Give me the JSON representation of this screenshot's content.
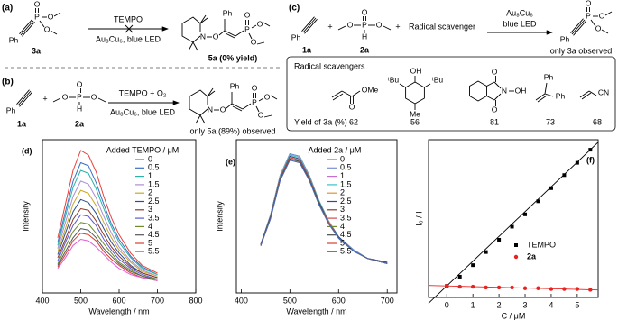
{
  "schemes": {
    "a": {
      "label": "(a)",
      "reactant": "3a",
      "reactant_atoms": [
        "Ph",
        "O",
        "P",
        "O",
        "O"
      ],
      "reagent": "TEMPO",
      "conditions": "Au₈Cu₆, blue LED",
      "product_atoms": [
        "N",
        "O",
        "Ph",
        "P",
        "O",
        "O",
        "O"
      ],
      "product": "5a (0% yield)"
    },
    "b": {
      "label": "(b)",
      "reactant1": "1a",
      "reactant1_atoms": [
        "Ph"
      ],
      "plus": "+",
      "reactant2": "2a",
      "reactant2_atoms": [
        "O",
        "P",
        "O",
        "O",
        "H"
      ],
      "reagent": "TEMPO + O₂",
      "conditions": "Au₈Cu₆, blue LED",
      "product_atoms": [
        "N",
        "O",
        "Ph",
        "P",
        "O",
        "O",
        "O"
      ],
      "product": "only 5a (89%) observed"
    },
    "c": {
      "label": "(c)",
      "reactant1": "1a",
      "reactant1_atoms": [
        "Ph"
      ],
      "plus1": "+",
      "reactant2": "2a",
      "reactant2_atoms": [
        "O",
        "P",
        "O",
        "O",
        "H"
      ],
      "plus2": "+",
      "scavenger": "Radical scavenger",
      "catalyst": "Au₈Cu₆",
      "light": "blue LED",
      "product_atoms": [
        "Ph",
        "O",
        "P",
        "O",
        "O"
      ],
      "product": "only 3a observed",
      "box_title": "Radical scavengers",
      "scavenger_atoms": [
        "O",
        "OMe",
        "OH",
        "ᵗBu",
        "ᵗBu",
        "Me",
        "O",
        "O",
        "N",
        "OH",
        "Ph",
        "Ph",
        "CN"
      ],
      "yield_label": "Yield of 3a (%)",
      "yields": [
        62,
        56,
        81,
        73,
        68
      ]
    }
  },
  "chart_data": [
    {
      "type": "line",
      "panel_label": "(d)",
      "xlabel": "Wavelength / nm",
      "ylabel": "Intensity",
      "legend_title": "Added TEMPO / μM",
      "x": [
        440,
        460,
        480,
        500,
        520,
        540,
        560,
        580,
        600,
        630,
        660,
        700
      ],
      "xlim": [
        400,
        800
      ],
      "xticks": [
        400,
        500,
        600,
        700,
        800
      ],
      "ylim": [
        0,
        100
      ],
      "series": [
        {
          "name": "0",
          "color": "#e8413a",
          "values": [
            36,
            58,
            80,
            93,
            90,
            79,
            63,
            49,
            38,
            26,
            18,
            13
          ]
        },
        {
          "name": "0.5",
          "color": "#3b6fc2",
          "values": [
            33,
            53,
            73,
            85,
            83,
            72,
            58,
            45,
            35,
            24,
            17,
            12
          ]
        },
        {
          "name": "1",
          "color": "#2ab3a6",
          "values": [
            31,
            50,
            69,
            80,
            78,
            68,
            55,
            43,
            33,
            23,
            16,
            12
          ]
        },
        {
          "name": "1.5",
          "color": "#a88fd6",
          "values": [
            29,
            46,
            63,
            73,
            71,
            62,
            50,
            39,
            30,
            21,
            15,
            11
          ]
        },
        {
          "name": "2",
          "color": "#c8a822",
          "values": [
            27,
            42,
            58,
            67,
            65,
            57,
            46,
            36,
            28,
            20,
            14,
            11
          ]
        },
        {
          "name": "2.5",
          "color": "#2a4d8f",
          "values": [
            25,
            39,
            53,
            61,
            59,
            52,
            42,
            33,
            26,
            18,
            13,
            10
          ]
        },
        {
          "name": "3",
          "color": "#8e3a2a",
          "values": [
            23,
            35,
            48,
            55,
            54,
            47,
            38,
            30,
            24,
            17,
            13,
            10
          ]
        },
        {
          "name": "3.5",
          "color": "#5a5ad6",
          "values": [
            21,
            33,
            44,
            51,
            50,
            44,
            35,
            28,
            22,
            16,
            12,
            9
          ]
        },
        {
          "name": "4",
          "color": "#6c8c2a",
          "values": [
            19,
            30,
            40,
            46,
            45,
            39,
            32,
            26,
            20,
            15,
            11,
            9
          ]
        },
        {
          "name": "4.5",
          "color": "#555555",
          "values": [
            18,
            27,
            36,
            42,
            41,
            36,
            29,
            24,
            19,
            14,
            11,
            8
          ]
        },
        {
          "name": "5",
          "color": "#d43f2f",
          "values": [
            17,
            25,
            34,
            39,
            38,
            34,
            27,
            22,
            18,
            13,
            10,
            8
          ]
        },
        {
          "name": "5.5",
          "color": "#e05fd8",
          "values": [
            16,
            23,
            31,
            35,
            34,
            30,
            25,
            20,
            16,
            12,
            10,
            8
          ]
        }
      ]
    },
    {
      "type": "line",
      "panel_label": "(e)",
      "xlabel": "Wavelength / nm",
      "ylabel": "Intensity",
      "legend_title": "Added 2a / μM",
      "x": [
        440,
        460,
        480,
        500,
        520,
        540,
        560,
        580,
        600,
        630,
        660,
        700
      ],
      "xlim": [
        390,
        720
      ],
      "xticks": [
        400,
        500,
        600,
        700
      ],
      "ylim": [
        -20,
        100
      ],
      "series": [
        {
          "name": "0",
          "color": "#3aa64a",
          "values": [
            18,
            41,
            72,
            89,
            87,
            72,
            52,
            36,
            24,
            14,
            7,
            4
          ]
        },
        {
          "name": "0.5",
          "color": "#7a8fd4",
          "values": [
            18,
            41,
            72,
            89,
            87,
            72,
            52,
            36,
            24,
            14,
            7,
            4
          ]
        },
        {
          "name": "1",
          "color": "#c76fd1",
          "values": [
            18,
            40,
            71,
            88,
            86,
            71,
            52,
            36,
            24,
            13,
            7,
            4
          ]
        },
        {
          "name": "1.5",
          "color": "#3dc2c2",
          "values": [
            18,
            40,
            71,
            88,
            86,
            71,
            52,
            36,
            24,
            13,
            7,
            4
          ]
        },
        {
          "name": "2",
          "color": "#e0952a",
          "values": [
            18,
            40,
            70,
            87,
            85,
            70,
            51,
            35,
            24,
            13,
            7,
            4
          ]
        },
        {
          "name": "2.5",
          "color": "#2a4d8f",
          "values": [
            18,
            40,
            70,
            87,
            85,
            70,
            51,
            35,
            24,
            13,
            7,
            4
          ]
        },
        {
          "name": "3",
          "color": "#8e3a2a",
          "values": [
            17,
            39,
            70,
            86,
            84,
            70,
            50,
            35,
            23,
            13,
            7,
            3
          ]
        },
        {
          "name": "3.5",
          "color": "#d64a4a",
          "values": [
            17,
            39,
            70,
            86,
            84,
            70,
            50,
            35,
            23,
            13,
            7,
            3
          ]
        },
        {
          "name": "4",
          "color": "#6c8c2a",
          "values": [
            17,
            39,
            69,
            85,
            83,
            69,
            50,
            34,
            23,
            13,
            7,
            3
          ]
        },
        {
          "name": "4.5",
          "color": "#4a4a4a",
          "values": [
            17,
            39,
            69,
            85,
            83,
            69,
            50,
            34,
            23,
            13,
            7,
            3
          ]
        },
        {
          "name": "5",
          "color": "#d43f2f",
          "values": [
            17,
            38,
            68,
            84,
            82,
            68,
            49,
            34,
            23,
            13,
            7,
            3
          ]
        },
        {
          "name": "5.5",
          "color": "#3b6fc2",
          "values": [
            17,
            38,
            68,
            84,
            82,
            68,
            49,
            34,
            23,
            13,
            7,
            3
          ]
        }
      ]
    },
    {
      "type": "scatter",
      "panel_label": "(f)",
      "xlabel": "C / μM",
      "ylabel": "I₀ / I",
      "x": [
        0,
        0.5,
        1,
        1.5,
        2,
        2.5,
        3,
        3.5,
        4,
        4.5,
        5,
        5.5
      ],
      "xlim": [
        -0.7,
        5.8
      ],
      "xticks": [
        0,
        1,
        2,
        3,
        4,
        5
      ],
      "ylim": [
        0.85,
        2.9
      ],
      "fit_line": true,
      "series": [
        {
          "name": "TEMPO",
          "color": "#000000",
          "marker": "square",
          "values": [
            1.0,
            1.12,
            1.27,
            1.44,
            1.6,
            1.77,
            1.93,
            2.1,
            2.27,
            2.44,
            2.6,
            2.77
          ]
        },
        {
          "name": "2a",
          "color": "#e8231f",
          "marker": "circle",
          "values": [
            1.0,
            0.99,
            0.99,
            0.98,
            0.98,
            0.98,
            0.97,
            0.97,
            0.96,
            0.96,
            0.96,
            0.95
          ]
        }
      ]
    }
  ]
}
